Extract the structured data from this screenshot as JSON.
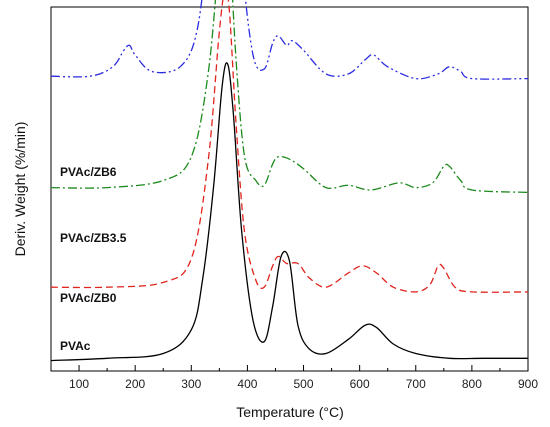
{
  "chart_data": {
    "type": "line",
    "title": "",
    "xlabel": "Temperature (°C)",
    "ylabel": "Deriv. Weight (%/min)",
    "xlim": [
      50,
      900
    ],
    "x_ticks": [
      100,
      200,
      300,
      400,
      500,
      600,
      700,
      800,
      900
    ],
    "y_ticks": [],
    "grid": false,
    "legend": "none; series labelled directly at left",
    "series": [
      {
        "name": "PVAc",
        "color": "#000000",
        "dash": "solid",
        "offset": 0.0,
        "x": [
          50,
          150,
          250,
          300,
          320,
          340,
          355,
          365,
          375,
          390,
          410,
          430,
          445,
          460,
          475,
          490,
          510,
          540,
          580,
          610,
          630,
          660,
          700,
          760,
          820,
          900
        ],
        "y": [
          0.01,
          0.02,
          0.04,
          0.14,
          0.35,
          0.75,
          1.17,
          1.26,
          1.05,
          0.55,
          0.18,
          0.09,
          0.24,
          0.45,
          0.43,
          0.16,
          0.06,
          0.04,
          0.1,
          0.16,
          0.15,
          0.08,
          0.04,
          0.02,
          0.02,
          0.02
        ]
      },
      {
        "name": "PVAc/ZB0",
        "color": "#e0241c",
        "dash": "long-dash",
        "offset": 0.3,
        "x": [
          50,
          150,
          250,
          300,
          330,
          350,
          360,
          368,
          380,
          395,
          415,
          430,
          445,
          455,
          470,
          490,
          510,
          540,
          580,
          605,
          630,
          660,
          700,
          725,
          740,
          750,
          770,
          800,
          900
        ],
        "y": [
          0.02,
          0.02,
          0.04,
          0.14,
          0.55,
          1.1,
          1.27,
          1.18,
          0.7,
          0.25,
          0.05,
          0.02,
          0.11,
          0.15,
          0.12,
          0.12,
          0.06,
          0.02,
          0.08,
          0.11,
          0.08,
          0.02,
          0.0,
          0.03,
          0.11,
          0.1,
          0.02,
          0.0,
          0.0
        ]
      },
      {
        "name": "PVAc/ZB3.5",
        "color": "#1c8a1c",
        "dash": "dash-dot",
        "offset": 0.72,
        "x": [
          50,
          150,
          250,
          300,
          330,
          350,
          360,
          368,
          380,
          395,
          415,
          430,
          445,
          455,
          475,
          500,
          540,
          580,
          620,
          670,
          700,
          730,
          750,
          760,
          780,
          800,
          900
        ],
        "y": [
          0.02,
          0.02,
          0.05,
          0.15,
          0.5,
          1.0,
          1.17,
          1.05,
          0.55,
          0.15,
          0.05,
          0.03,
          0.12,
          0.15,
          0.14,
          0.1,
          0.02,
          0.03,
          0.01,
          0.04,
          0.02,
          0.04,
          0.11,
          0.11,
          0.05,
          0.01,
          0.0
        ]
      },
      {
        "name": "PVAc/ZB6",
        "color": "#2b2be0",
        "dash": "dash-dot-dot",
        "offset": 1.2,
        "x": [
          50,
          120,
          160,
          180,
          190,
          200,
          230,
          280,
          310,
          330,
          345,
          355,
          362,
          375,
          390,
          410,
          430,
          445,
          455,
          470,
          480,
          500,
          540,
          580,
          610,
          625,
          650,
          700,
          740,
          760,
          780,
          800,
          900
        ],
        "y": [
          0.01,
          0.01,
          0.05,
          0.12,
          0.14,
          0.1,
          0.03,
          0.05,
          0.2,
          0.6,
          1.1,
          1.3,
          1.35,
          1.1,
          0.5,
          0.1,
          0.04,
          0.15,
          0.18,
          0.14,
          0.16,
          0.12,
          0.02,
          0.02,
          0.08,
          0.1,
          0.05,
          0.0,
          0.02,
          0.05,
          0.03,
          0.0,
          0.0
        ]
      }
    ]
  }
}
